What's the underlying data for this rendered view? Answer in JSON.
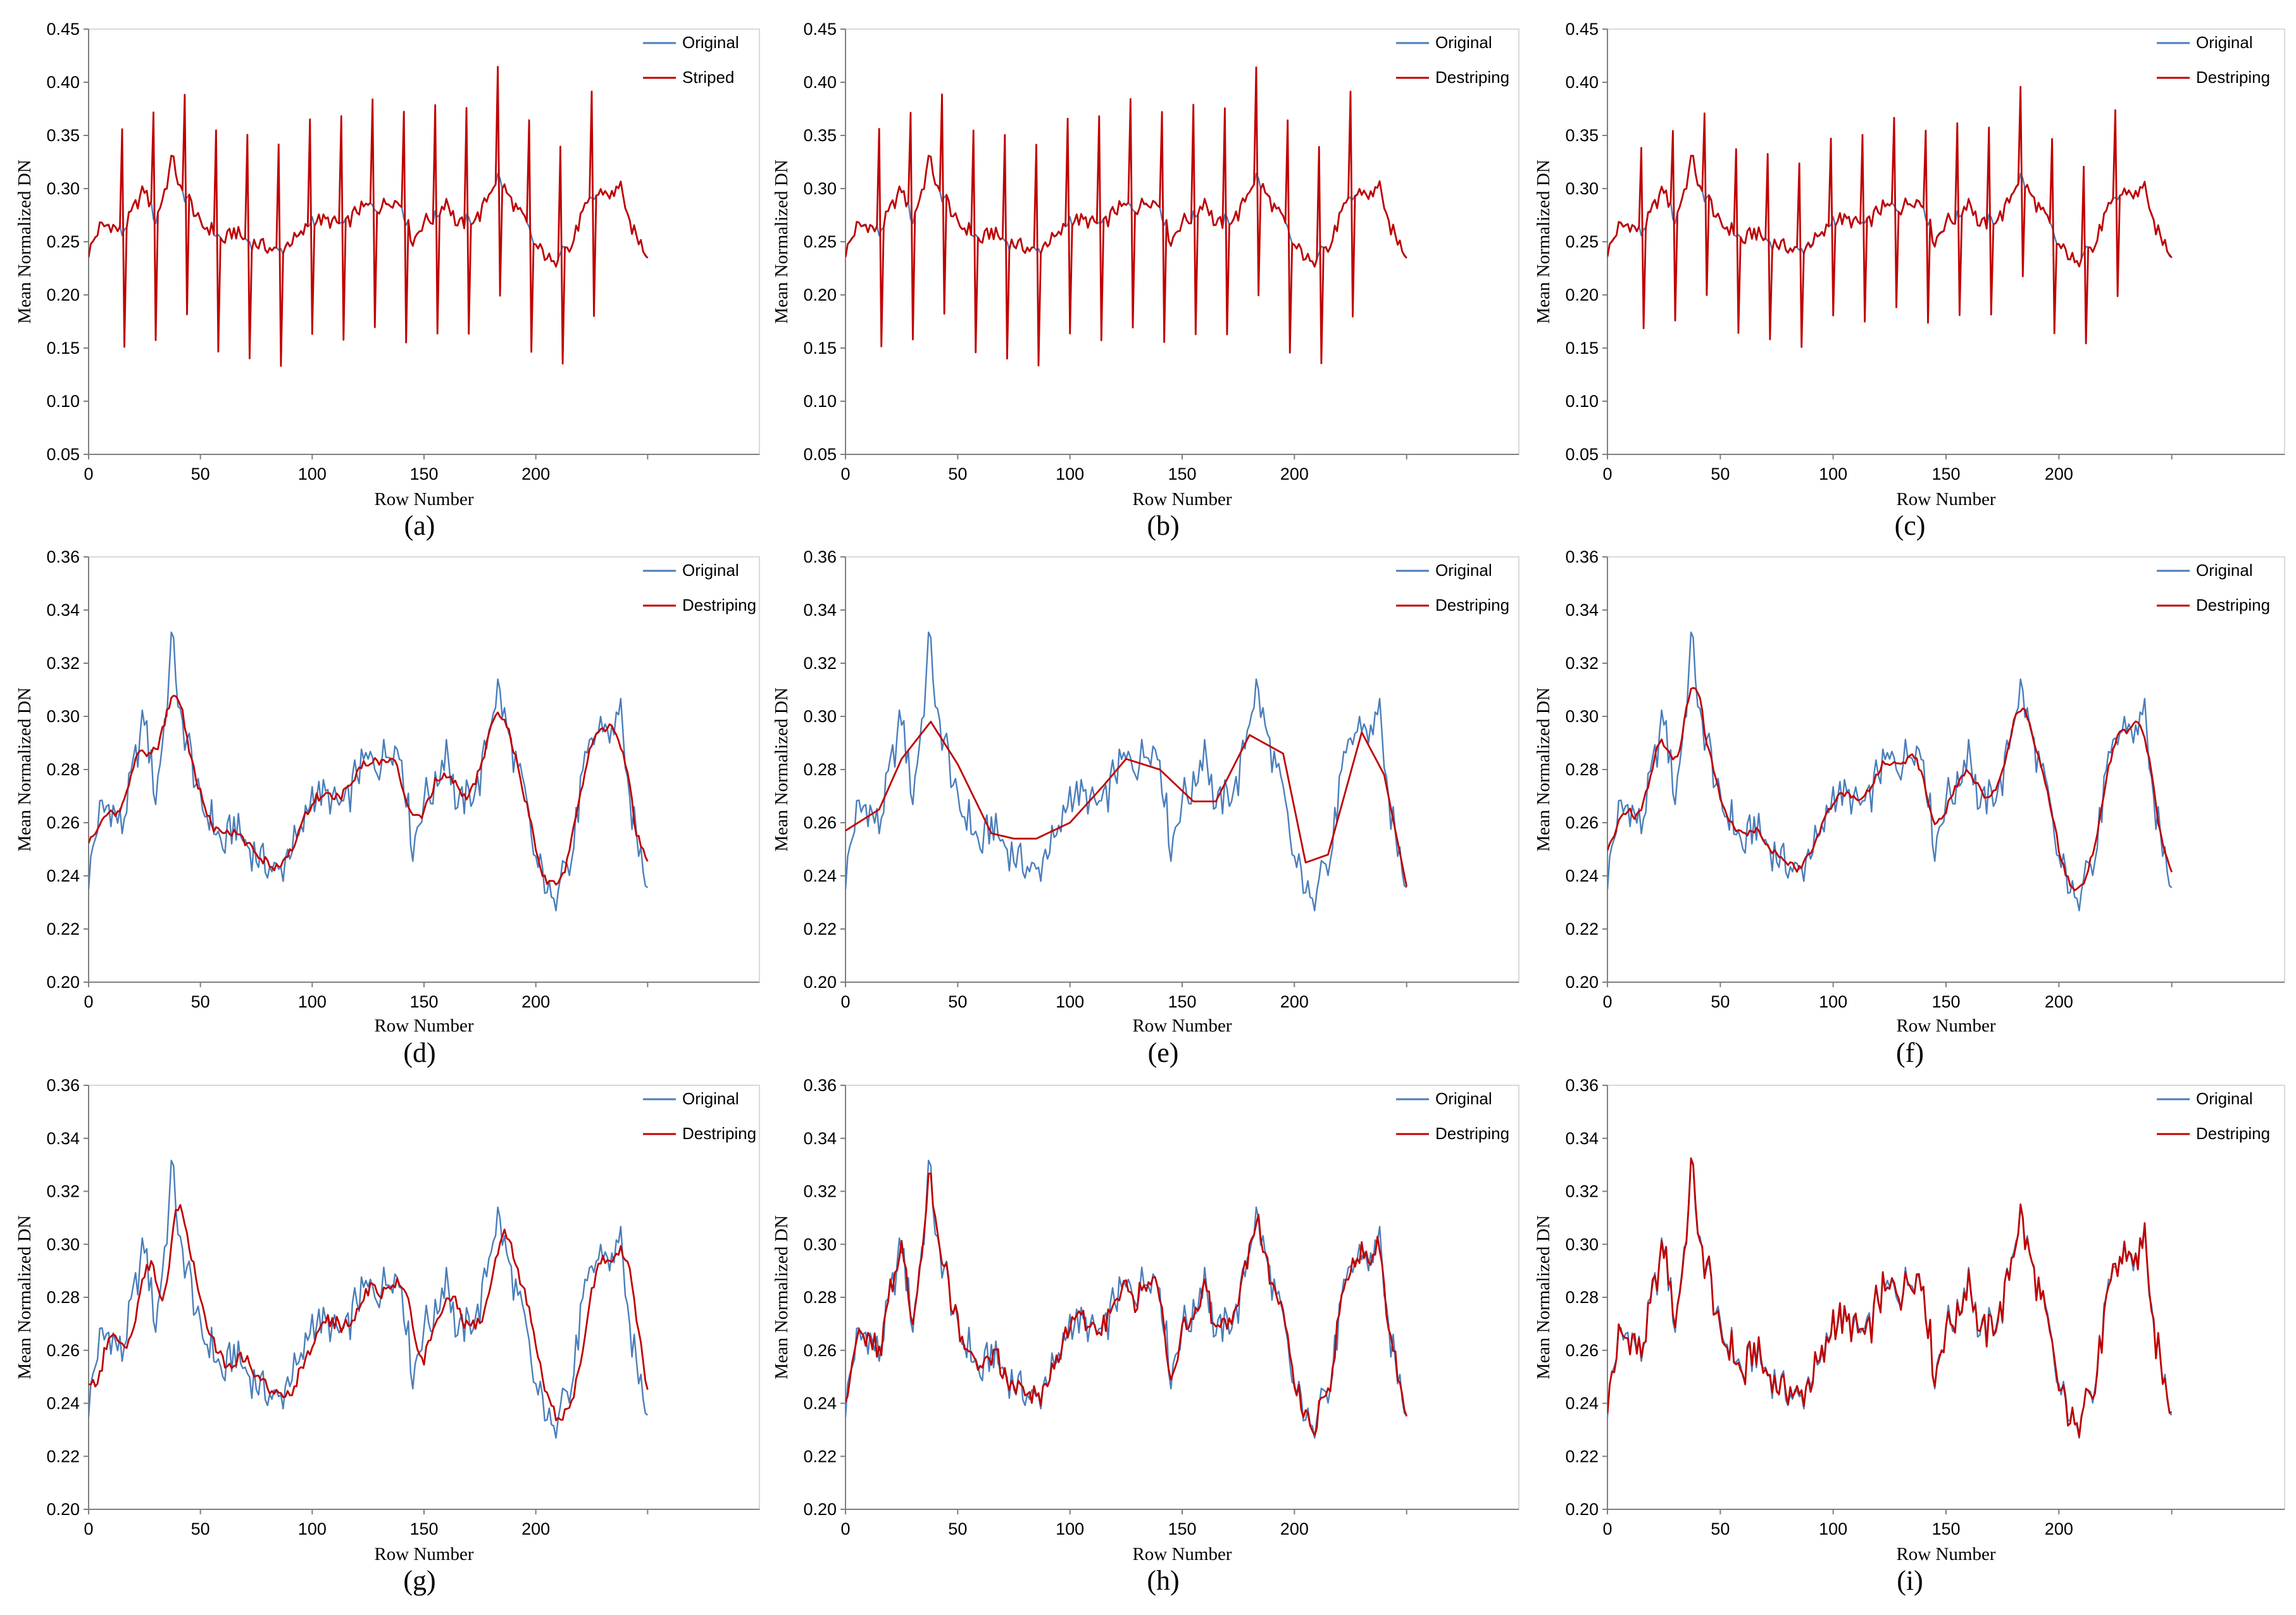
{
  "figure": {
    "colors": {
      "original": "#4a7ebb",
      "processed": "#c00000",
      "axis": "#7f7f7f",
      "frame": "#d9d9d9"
    }
  },
  "chart_data": [
    {
      "type": "line",
      "panel": "(a)",
      "xlabel": "Row Number",
      "ylabel": "Mean Normalized DN",
      "xlim": [
        0,
        300
      ],
      "xticks": [
        0,
        50,
        100,
        150,
        200
      ],
      "ylim": [
        0.05,
        0.45
      ],
      "yticks": [
        0.05,
        0.1,
        0.15,
        0.2,
        0.25,
        0.3,
        0.35,
        0.4,
        0.45
      ],
      "ytick_labels": [
        "0.05",
        "0.10",
        "0.15",
        "0.20",
        "0.25",
        "0.30",
        "0.35",
        "0.40",
        "0.45"
      ],
      "legend": {
        "position": "top-right",
        "entries": [
          "Original",
          "Striped"
        ]
      },
      "series": [
        {
          "name": "Original",
          "color": "#4a7ebb",
          "generator": "original",
          "jitter": 0.5
        },
        {
          "name": "Striped",
          "color": "#c00000",
          "generator": "striped",
          "jitter": 0.15,
          "stripe_up": 0.1,
          "stripe_down": 0.11
        }
      ]
    },
    {
      "type": "line",
      "panel": "(b)",
      "xlabel": "Row Number",
      "ylabel": "Mean Normalized DN",
      "xlim": [
        0,
        300
      ],
      "xticks": [
        0,
        50,
        100,
        150,
        200
      ],
      "ylim": [
        0.05,
        0.45
      ],
      "yticks": [
        0.05,
        0.1,
        0.15,
        0.2,
        0.25,
        0.3,
        0.35,
        0.4,
        0.45
      ],
      "ytick_labels": [
        "0.05",
        "0.10",
        "0.15",
        "0.20",
        "0.25",
        "0.30",
        "0.35",
        "0.40",
        "0.45"
      ],
      "legend": {
        "position": "top-right",
        "entries": [
          "Original",
          "Destriping"
        ]
      },
      "series": [
        {
          "name": "Original",
          "color": "#4a7ebb",
          "generator": "original",
          "jitter": 0.5
        },
        {
          "name": "Destriping",
          "color": "#c00000",
          "generator": "striped",
          "jitter": 0.15,
          "stripe_up": 0.1,
          "stripe_down": 0.11
        }
      ]
    },
    {
      "type": "line",
      "panel": "(c)",
      "xlabel": "Row Number",
      "ylabel": "Mean Normalized DN",
      "xlim": [
        0,
        300
      ],
      "xticks": [
        0,
        50,
        100,
        150,
        200
      ],
      "ylim": [
        0.05,
        0.45
      ],
      "yticks": [
        0.05,
        0.1,
        0.15,
        0.2,
        0.25,
        0.3,
        0.35,
        0.4,
        0.45
      ],
      "ytick_labels": [
        "0.05",
        "0.10",
        "0.15",
        "0.20",
        "0.25",
        "0.30",
        "0.35",
        "0.40",
        "0.45"
      ],
      "legend": {
        "position": "top-right",
        "entries": [
          "Original",
          "Destriping"
        ]
      },
      "series": [
        {
          "name": "Original",
          "color": "#4a7ebb",
          "generator": "original",
          "jitter": 0.5
        },
        {
          "name": "Destriping",
          "color": "#c00000",
          "generator": "striped",
          "jitter": 0.3,
          "stripe_up": 0.082,
          "stripe_down": 0.092
        }
      ]
    },
    {
      "type": "line",
      "panel": "(d)",
      "xlabel": "Row Number",
      "ylabel": "Mean Normalized DN",
      "xlim": [
        0,
        300
      ],
      "xticks": [
        0,
        50,
        100,
        150,
        200
      ],
      "ylim": [
        0.2,
        0.36
      ],
      "yticks": [
        0.2,
        0.22,
        0.24,
        0.26,
        0.28,
        0.3,
        0.32,
        0.34,
        0.36
      ],
      "ytick_labels": [
        "0.20",
        "0.22",
        "0.24",
        "0.26",
        "0.28",
        "0.30",
        "0.32",
        "0.34",
        "0.36"
      ],
      "legend": {
        "position": "top-right",
        "entries": [
          "Original",
          "Destriping"
        ]
      },
      "series": [
        {
          "name": "Original",
          "color": "#4a7ebb",
          "generator": "original",
          "jitter": 1
        },
        {
          "name": "Destriping",
          "color": "#c00000",
          "generator": "smooth",
          "window": 5,
          "jitter": 0.25
        }
      ]
    },
    {
      "type": "line",
      "panel": "(e)",
      "xlabel": "Row Number",
      "ylabel": "Mean Normalized DN",
      "xlim": [
        0,
        300
      ],
      "xticks": [
        0,
        50,
        100,
        150,
        200
      ],
      "ylim": [
        0.2,
        0.36
      ],
      "yticks": [
        0.2,
        0.22,
        0.24,
        0.26,
        0.28,
        0.3,
        0.32,
        0.34,
        0.36
      ],
      "ytick_labels": [
        "0.20",
        "0.22",
        "0.24",
        "0.26",
        "0.28",
        "0.30",
        "0.32",
        "0.34",
        "0.36"
      ],
      "legend": {
        "position": "top-right",
        "entries": [
          "Original",
          "Destriping"
        ]
      },
      "series": [
        {
          "name": "Original",
          "color": "#4a7ebb",
          "generator": "original",
          "jitter": 1
        },
        {
          "name": "Destriping",
          "color": "#c00000",
          "generator": "trend"
        }
      ]
    },
    {
      "type": "line",
      "panel": "(f)",
      "xlabel": "Row Number",
      "ylabel": "Mean Normalized DN",
      "xlim": [
        0,
        300
      ],
      "xticks": [
        0,
        50,
        100,
        150,
        200
      ],
      "ylim": [
        0.2,
        0.36
      ],
      "yticks": [
        0.2,
        0.22,
        0.24,
        0.26,
        0.28,
        0.3,
        0.32,
        0.34,
        0.36
      ],
      "ytick_labels": [
        "0.20",
        "0.22",
        "0.24",
        "0.26",
        "0.28",
        "0.30",
        "0.32",
        "0.34",
        "0.36"
      ],
      "legend": {
        "position": "top-right",
        "entries": [
          "Original",
          "Destriping"
        ]
      },
      "series": [
        {
          "name": "Original",
          "color": "#4a7ebb",
          "generator": "original",
          "jitter": 1
        },
        {
          "name": "Destriping",
          "color": "#c00000",
          "generator": "smooth",
          "window": 4,
          "jitter": 0.2
        }
      ]
    },
    {
      "type": "line",
      "panel": "(g)",
      "xlabel": "Row Number",
      "ylabel": "Mean Normalized DN",
      "xlim": [
        0,
        300
      ],
      "xticks": [
        0,
        50,
        100,
        150,
        200
      ],
      "ylim": [
        0.2,
        0.36
      ],
      "yticks": [
        0.2,
        0.22,
        0.24,
        0.26,
        0.28,
        0.3,
        0.32,
        0.34,
        0.36
      ],
      "ytick_labels": [
        "0.20",
        "0.22",
        "0.24",
        "0.26",
        "0.28",
        "0.30",
        "0.32",
        "0.34",
        "0.36"
      ],
      "legend": {
        "position": "top-right",
        "entries": [
          "Original",
          "Destriping"
        ]
      },
      "series": [
        {
          "name": "Original",
          "color": "#4a7ebb",
          "generator": "original",
          "jitter": 1
        },
        {
          "name": "Destriping",
          "color": "#c00000",
          "generator": "smooth",
          "window": 3,
          "shift": 3,
          "jitter": 0.4
        }
      ]
    },
    {
      "type": "line",
      "panel": "(h)",
      "xlabel": "Row Number",
      "ylabel": "Mean Normalized DN",
      "xlim": [
        0,
        300
      ],
      "xticks": [
        0,
        50,
        100,
        150,
        200
      ],
      "ylim": [
        0.2,
        0.36
      ],
      "yticks": [
        0.2,
        0.22,
        0.24,
        0.26,
        0.28,
        0.3,
        0.32,
        0.34,
        0.36
      ],
      "ytick_labels": [
        "0.20",
        "0.22",
        "0.24",
        "0.26",
        "0.28",
        "0.30",
        "0.32",
        "0.34",
        "0.36"
      ],
      "legend": {
        "position": "top-right",
        "entries": [
          "Original",
          "Destriping"
        ]
      },
      "series": [
        {
          "name": "Original",
          "color": "#4a7ebb",
          "generator": "original",
          "jitter": 1
        },
        {
          "name": "Destriping",
          "color": "#c00000",
          "generator": "smooth",
          "window": 1,
          "jitter": 0.6
        }
      ]
    },
    {
      "type": "line",
      "panel": "(i)",
      "xlabel": "Row Number",
      "ylabel": "Mean Normalized DN",
      "xlim": [
        0,
        300
      ],
      "xticks": [
        0,
        50,
        100,
        150,
        200
      ],
      "ylim": [
        0.2,
        0.36
      ],
      "yticks": [
        0.2,
        0.22,
        0.24,
        0.26,
        0.28,
        0.3,
        0.32,
        0.34,
        0.36
      ],
      "ytick_labels": [
        "0.20",
        "0.22",
        "0.24",
        "0.26",
        "0.28",
        "0.30",
        "0.32",
        "0.34",
        "0.36"
      ],
      "legend": {
        "position": "top-right",
        "entries": [
          "Original",
          "Destriping"
        ]
      },
      "series": [
        {
          "name": "Original",
          "color": "#4a7ebb",
          "generator": "original",
          "jitter": 1
        },
        {
          "name": "Destriping",
          "color": "#c00000",
          "generator": "smooth",
          "window": 0,
          "jitter": 0.35
        }
      ]
    }
  ],
  "anchors": {
    "x": [
      0,
      5,
      10,
      15,
      20,
      25,
      30,
      35,
      38,
      40,
      45,
      50,
      55,
      60,
      65,
      70,
      75,
      80,
      85,
      90,
      95,
      100,
      105,
      110,
      115,
      120,
      125,
      130,
      135,
      140,
      145,
      150,
      155,
      160,
      165,
      170,
      175,
      180,
      183,
      186,
      190,
      195,
      200,
      205,
      208,
      212,
      215,
      220,
      225,
      230,
      235,
      238,
      240,
      245,
      250
    ],
    "y": [
      0.24,
      0.264,
      0.266,
      0.258,
      0.28,
      0.3,
      0.27,
      0.305,
      0.334,
      0.3,
      0.29,
      0.265,
      0.262,
      0.25,
      0.26,
      0.252,
      0.248,
      0.245,
      0.24,
      0.25,
      0.255,
      0.272,
      0.27,
      0.268,
      0.265,
      0.28,
      0.283,
      0.282,
      0.29,
      0.285,
      0.25,
      0.27,
      0.272,
      0.29,
      0.265,
      0.27,
      0.275,
      0.3,
      0.311,
      0.3,
      0.285,
      0.27,
      0.245,
      0.237,
      0.226,
      0.252,
      0.24,
      0.272,
      0.29,
      0.298,
      0.292,
      0.31,
      0.275,
      0.255,
      0.238
    ]
  },
  "trend_anchors": {
    "x": [
      0,
      15,
      25,
      38,
      50,
      65,
      75,
      85,
      100,
      115,
      125,
      140,
      155,
      165,
      180,
      195,
      205,
      215,
      230,
      240,
      250
    ],
    "y": [
      0.257,
      0.265,
      0.284,
      0.298,
      0.282,
      0.256,
      0.254,
      0.254,
      0.26,
      0.274,
      0.284,
      0.28,
      0.268,
      0.268,
      0.293,
      0.286,
      0.245,
      0.248,
      0.294,
      0.278,
      0.236
    ]
  },
  "stripe_rows": {
    "up": [
      15,
      29,
      43,
      57,
      71,
      85,
      99,
      113,
      127,
      141,
      155,
      169,
      183,
      197,
      211,
      225
    ],
    "down": [
      16,
      30,
      44,
      58,
      72,
      86,
      100,
      114,
      128,
      142,
      156,
      170,
      184,
      198,
      212,
      226
    ]
  }
}
